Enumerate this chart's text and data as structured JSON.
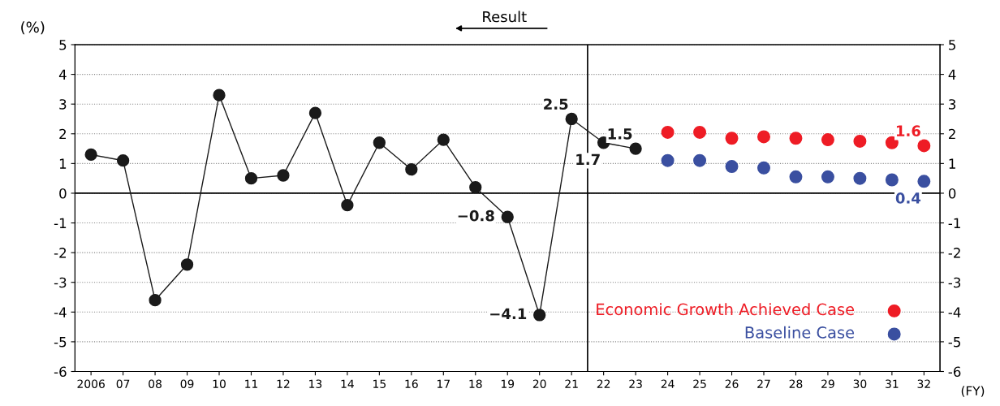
{
  "chart_data": {
    "type": "line",
    "ylabel": "(%)",
    "xlabel": "(FY)",
    "xlim": [
      2005.5,
      2032.5
    ],
    "xticks": [
      {
        "value": 2006,
        "label": "2006"
      },
      {
        "value": 2007,
        "label": "07"
      },
      {
        "value": 2008,
        "label": "08"
      },
      {
        "value": 2009,
        "label": "09"
      },
      {
        "value": 2010,
        "label": "10"
      },
      {
        "value": 2011,
        "label": "11"
      },
      {
        "value": 2012,
        "label": "12"
      },
      {
        "value": 2013,
        "label": "13"
      },
      {
        "value": 2014,
        "label": "14"
      },
      {
        "value": 2015,
        "label": "15"
      },
      {
        "value": 2016,
        "label": "16"
      },
      {
        "value": 2017,
        "label": "17"
      },
      {
        "value": 2018,
        "label": "18"
      },
      {
        "value": 2019,
        "label": "19"
      },
      {
        "value": 2020,
        "label": "20"
      },
      {
        "value": 2021,
        "label": "21"
      },
      {
        "value": 2022,
        "label": "22"
      },
      {
        "value": 2023,
        "label": "23"
      },
      {
        "value": 2024,
        "label": "24"
      },
      {
        "value": 2025,
        "label": "25"
      },
      {
        "value": 2026,
        "label": "26"
      },
      {
        "value": 2027,
        "label": "27"
      },
      {
        "value": 2028,
        "label": "28"
      },
      {
        "value": 2029,
        "label": "29"
      },
      {
        "value": 2030,
        "label": "30"
      },
      {
        "value": 2031,
        "label": "31"
      },
      {
        "value": 2032,
        "label": "32"
      }
    ],
    "ylim": [
      -6,
      5
    ],
    "yticks": [
      -6,
      -5,
      -4,
      -3,
      -2,
      -1,
      0,
      1,
      2,
      3,
      4,
      5
    ],
    "y2lim": [
      -6,
      5
    ],
    "y2ticks": [
      -6,
      -5,
      -4,
      -3,
      -2,
      -1,
      0,
      1,
      2,
      3,
      4,
      5
    ],
    "grid": "y",
    "legend": "bottom right",
    "marker": "circle",
    "line_style": "solid",
    "series": [
      {
        "color": "#1a1a1a",
        "x": [
          2006,
          2007,
          2008,
          2009,
          2010,
          2011,
          2012,
          2013,
          2014,
          2015,
          2016,
          2017,
          2018,
          2019,
          2020,
          2021,
          2022,
          2023
        ],
        "values": [
          1.3,
          1.1,
          -3.6,
          -2.4,
          3.3,
          0.5,
          0.6,
          2.7,
          -0.4,
          1.7,
          0.8,
          1.8,
          0.2,
          -0.8,
          -4.1,
          2.5,
          1.7,
          1.5
        ],
        "value_labels": [
          null,
          null,
          null,
          null,
          null,
          null,
          null,
          null,
          null,
          null,
          null,
          null,
          null,
          "−0.8",
          "−4.1",
          "2.5",
          "1.7",
          "1.5"
        ]
      },
      {
        "name": "Economic Growth Achieved Case",
        "color": "#ee1c25",
        "type": "scatter",
        "x": [
          2024,
          2025,
          2026,
          2027,
          2028,
          2029,
          2030,
          2031,
          2032
        ],
        "values": [
          2.05,
          2.05,
          1.85,
          1.9,
          1.85,
          1.8,
          1.75,
          1.7,
          1.6
        ],
        "value_labels": [
          null,
          null,
          null,
          null,
          null,
          null,
          null,
          null,
          "1.6"
        ]
      },
      {
        "name": "Baseline Case",
        "color": "#3a4fa0",
        "type": "scatter",
        "x": [
          2024,
          2025,
          2026,
          2027,
          2028,
          2029,
          2030,
          2031,
          2032
        ],
        "values": [
          1.1,
          1.1,
          0.9,
          0.85,
          0.55,
          0.55,
          0.5,
          0.45,
          0.4
        ],
        "value_labels": [
          null,
          null,
          null,
          null,
          null,
          null,
          null,
          null,
          "0.4"
        ]
      }
    ],
    "ref_lines": [
      {
        "axis": "x",
        "value": 2021.5,
        "label": "Result",
        "color": "#000000"
      },
      {
        "axis": "y",
        "value": 0,
        "color": "#000000"
      }
    ]
  }
}
